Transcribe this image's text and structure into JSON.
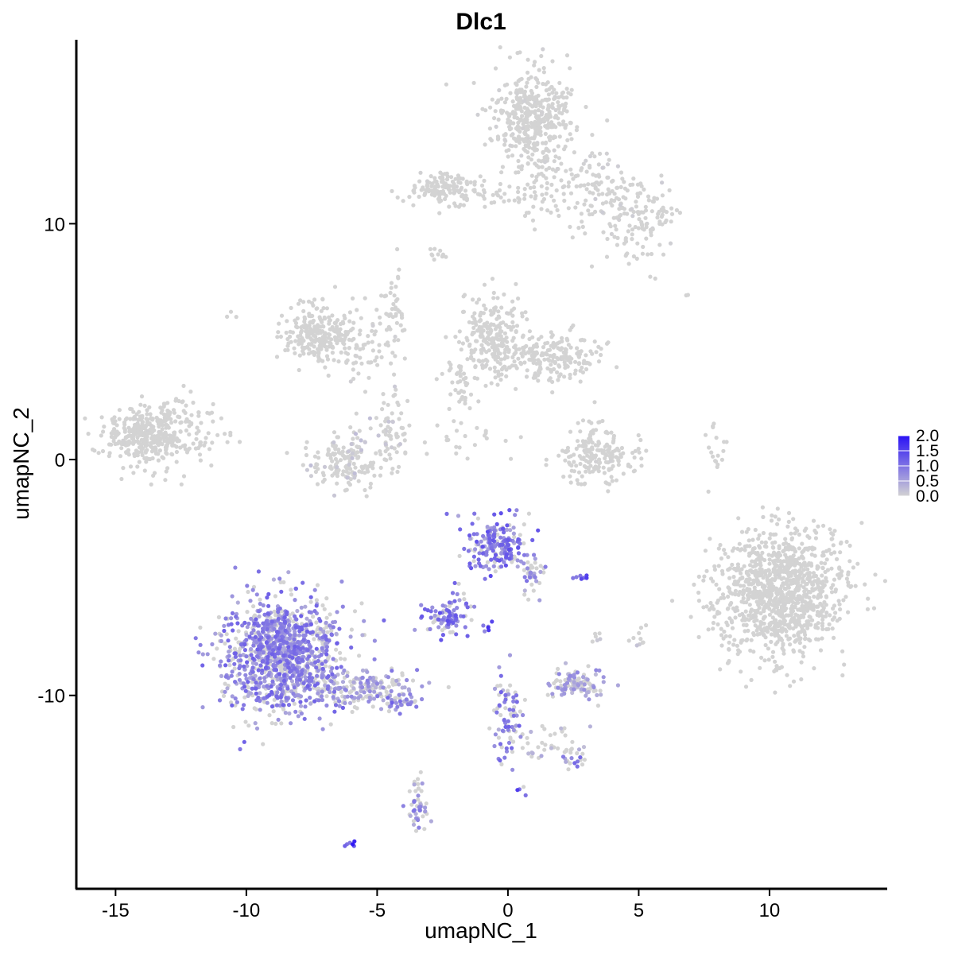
{
  "chart_data": {
    "type": "scatter",
    "title": "Dlc1",
    "xlabel": "umapNC_1",
    "ylabel": "umapNC_2",
    "xlim": [
      -16.5,
      14.5
    ],
    "ylim": [
      -18.2,
      17.8
    ],
    "x_ticks": [
      -15,
      -10,
      -5,
      0,
      5,
      10
    ],
    "x_tick_labels": [
      "-15",
      "-10",
      "-5",
      "0",
      "5",
      "10"
    ],
    "y_ticks": [
      -10,
      0,
      10
    ],
    "y_tick_labels": [
      "-10",
      "0",
      "10"
    ],
    "grid": false,
    "legend": {
      "placement": "right",
      "type": "colorbar",
      "min": 0.0,
      "max": 2.0,
      "ticks": [
        2.0,
        1.5,
        1.0,
        0.5,
        0.0
      ],
      "tick_labels": [
        "2.0",
        "1.5",
        "1.0",
        "0.5",
        "0.0"
      ],
      "low_color": "#d3d3d3",
      "high_color": "#2a12f5"
    },
    "clusters": [
      {
        "x": 1.0,
        "y": 14.5,
        "sx": 0.8,
        "sy": 1.0,
        "n": 420,
        "expr": 0.02
      },
      {
        "x": 2.5,
        "y": 11.8,
        "sx": 0.9,
        "sy": 0.8,
        "n": 110,
        "expr": 0.02
      },
      {
        "x": 4.8,
        "y": 10.3,
        "sx": 0.9,
        "sy": 1.0,
        "n": 160,
        "expr": 0.04
      },
      {
        "x": -2.5,
        "y": 11.5,
        "sx": 0.7,
        "sy": 0.4,
        "n": 130,
        "expr": 0.01
      },
      {
        "x": -0.3,
        "y": 11.2,
        "sx": 1.0,
        "sy": 0.3,
        "n": 50,
        "expr": 0.02
      },
      {
        "x": -2.7,
        "y": 8.8,
        "sx": 0.2,
        "sy": 0.15,
        "n": 10,
        "expr": 0.0
      },
      {
        "x": -7.2,
        "y": 5.4,
        "sx": 0.7,
        "sy": 0.6,
        "n": 230,
        "expr": 0.0
      },
      {
        "x": -5.5,
        "y": 4.5,
        "sx": 0.8,
        "sy": 0.7,
        "n": 70,
        "expr": 0.02
      },
      {
        "x": -4.4,
        "y": 6.5,
        "sx": 0.25,
        "sy": 0.9,
        "n": 40,
        "expr": 0.03
      },
      {
        "x": -0.6,
        "y": 5.2,
        "sx": 0.6,
        "sy": 0.9,
        "n": 230,
        "expr": 0.01
      },
      {
        "x": 1.6,
        "y": 4.3,
        "sx": 1.1,
        "sy": 0.5,
        "n": 210,
        "expr": 0.01
      },
      {
        "x": -1.8,
        "y": 3.0,
        "sx": 0.4,
        "sy": 0.8,
        "n": 40,
        "expr": 0.0
      },
      {
        "x": -6.2,
        "y": 0.0,
        "sx": 0.7,
        "sy": 0.6,
        "n": 170,
        "expr": 0.12
      },
      {
        "x": -4.5,
        "y": 1.3,
        "sx": 0.3,
        "sy": 1.0,
        "n": 60,
        "expr": 0.08
      },
      {
        "x": -1.8,
        "y": 0.8,
        "sx": 0.8,
        "sy": 0.25,
        "n": 20,
        "expr": 0.0
      },
      {
        "x": 3.5,
        "y": 0.0,
        "sx": 0.8,
        "sy": 0.5,
        "n": 150,
        "expr": 0.02
      },
      {
        "x": 3.2,
        "y": 0.9,
        "sx": 0.4,
        "sy": 0.6,
        "n": 40,
        "expr": 0.0
      },
      {
        "x": -13.8,
        "y": 1.0,
        "sx": 0.8,
        "sy": 0.6,
        "n": 390,
        "expr": 0.01
      },
      {
        "x": -12.0,
        "y": 1.3,
        "sx": 0.6,
        "sy": 0.7,
        "n": 60,
        "expr": 0.0
      },
      {
        "x": 8.0,
        "y": 0.3,
        "sx": 0.2,
        "sy": 0.6,
        "n": 18,
        "expr": 0.0
      },
      {
        "x": 10.5,
        "y": -5.6,
        "sx": 1.2,
        "sy": 1.3,
        "n": 1100,
        "expr": 0.01
      },
      {
        "x": -0.4,
        "y": -3.6,
        "sx": 0.6,
        "sy": 0.6,
        "n": 200,
        "expr": 0.7
      },
      {
        "x": 0.9,
        "y": -4.8,
        "sx": 0.3,
        "sy": 0.4,
        "n": 40,
        "expr": 0.5
      },
      {
        "x": -8.6,
        "y": -8.3,
        "sx": 1.1,
        "sy": 1.2,
        "n": 1150,
        "expr": 0.6
      },
      {
        "x": -5.5,
        "y": -9.7,
        "sx": 1.0,
        "sy": 0.4,
        "n": 190,
        "expr": 0.45
      },
      {
        "x": -4.2,
        "y": -10.3,
        "sx": 0.3,
        "sy": 0.2,
        "n": 30,
        "expr": 0.6
      },
      {
        "x": -2.4,
        "y": -6.8,
        "sx": 0.4,
        "sy": 0.3,
        "n": 80,
        "expr": 0.7
      },
      {
        "x": -1.8,
        "y": -5.8,
        "sx": 0.3,
        "sy": 0.4,
        "n": 18,
        "expr": 0.6
      },
      {
        "x": 2.5,
        "y": -9.5,
        "sx": 0.5,
        "sy": 0.3,
        "n": 110,
        "expr": 0.4
      },
      {
        "x": 0.0,
        "y": -10.6,
        "sx": 0.3,
        "sy": 1.0,
        "n": 80,
        "expr": 0.6
      },
      {
        "x": 1.6,
        "y": -12.0,
        "sx": 0.6,
        "sy": 0.4,
        "n": 35,
        "expr": 0.3
      },
      {
        "x": 2.5,
        "y": -12.6,
        "sx": 0.3,
        "sy": 0.2,
        "n": 20,
        "expr": 0.6
      },
      {
        "x": -3.4,
        "y": -14.8,
        "sx": 0.2,
        "sy": 0.6,
        "n": 50,
        "expr": 0.5
      },
      {
        "x": -6.0,
        "y": -16.3,
        "sx": 0.15,
        "sy": 0.1,
        "n": 6,
        "expr": 1.0
      },
      {
        "x": -0.7,
        "y": -7.1,
        "sx": 0.2,
        "sy": 0.2,
        "n": 6,
        "expr": 0.9
      },
      {
        "x": 2.8,
        "y": -5.0,
        "sx": 0.2,
        "sy": 0.1,
        "n": 8,
        "expr": 0.8
      },
      {
        "x": 5.0,
        "y": -7.5,
        "sx": 0.2,
        "sy": 0.3,
        "n": 10,
        "expr": 0.1
      },
      {
        "x": 3.3,
        "y": -7.5,
        "sx": 0.15,
        "sy": 0.2,
        "n": 6,
        "expr": 0.1
      },
      {
        "x": 0.6,
        "y": -14.0,
        "sx": 0.1,
        "sy": 0.1,
        "n": 4,
        "expr": 0.8
      },
      {
        "x": 6.8,
        "y": 7.0,
        "sx": 0.1,
        "sy": 0.1,
        "n": 2,
        "expr": 0.0
      },
      {
        "x": -10.5,
        "y": 6.1,
        "sx": 0.1,
        "sy": 0.1,
        "n": 3,
        "expr": 0.0
      }
    ]
  }
}
